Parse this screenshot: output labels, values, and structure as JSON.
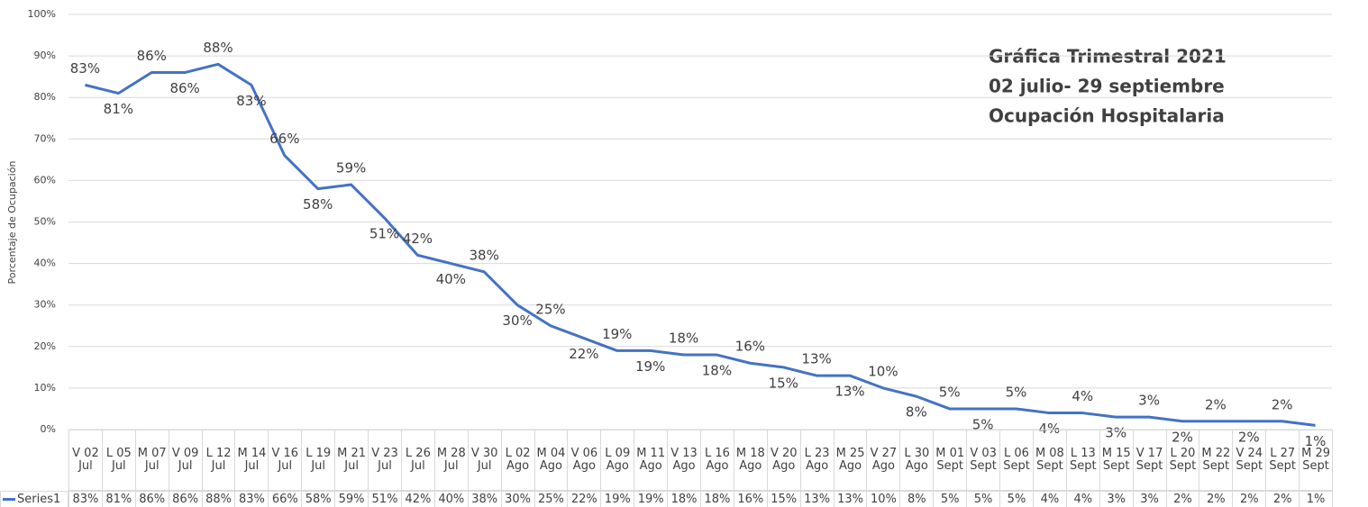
{
  "chart_data": {
    "type": "line",
    "title_lines": [
      "Gráfica Trimestral 2021",
      "02 julio- 29 septiembre",
      "Ocupación Hospitalaria"
    ],
    "y_label": "Porcentaje de Ocupación",
    "categories": [
      "V 02 Jul",
      "L 05 Jul",
      "M 07 Jul",
      "V 09 Jul",
      "L 12 Jul",
      "M 14 Jul",
      "V 16 Jul",
      "L 19 Jul",
      "M 21 Jul",
      "V 23 Jul",
      "L 26 Jul",
      "M 28 Jul",
      "V 30 Jul",
      "L 02 Ago",
      "M 04 Ago",
      "V 06 Ago",
      "L 09 Ago",
      "M 11 Ago",
      "V 13 Ago",
      "L 16 Ago",
      "M 18 Ago",
      "V 20 Ago",
      "L 23 Ago",
      "M 25 Ago",
      "V 27 Ago",
      "L 30 Ago",
      "M 01 Sept",
      "V 03 Sept",
      "L 06 Sept",
      "M 08 Sept",
      "L 13 Sept",
      "M 15 Sept",
      "V 17 Sept",
      "L 20 Sept",
      "M 22 Sept",
      "V 24 Sept",
      "L 27 Sept",
      "M 29 Sept"
    ],
    "series": [
      {
        "name": "Series1",
        "color": "#4472c4",
        "values": [
          83,
          81,
          86,
          86,
          88,
          83,
          66,
          58,
          59,
          51,
          42,
          40,
          38,
          30,
          25,
          22,
          19,
          19,
          18,
          18,
          16,
          15,
          13,
          13,
          10,
          8,
          5,
          5,
          5,
          4,
          4,
          3,
          3,
          2,
          2,
          2,
          2,
          1
        ],
        "value_labels": [
          "83%",
          "81%",
          "86%",
          "86%",
          "88%",
          "83%",
          "66%",
          "58%",
          "59%",
          "51%",
          "42%",
          "40%",
          "38%",
          "30%",
          "25%",
          "22%",
          "19%",
          "19%",
          "18%",
          "18%",
          "16%",
          "15%",
          "13%",
          "13%",
          "10%",
          "8%",
          "5%",
          "5%",
          "5%",
          "4%",
          "4%",
          "3%",
          "3%",
          "2%",
          "2%",
          "2%",
          "2%",
          "1%"
        ]
      }
    ],
    "ylim": [
      0,
      100
    ],
    "yticks": [
      {
        "value": 0,
        "label": "0%"
      },
      {
        "value": 10,
        "label": "10%"
      },
      {
        "value": 20,
        "label": "20%"
      },
      {
        "value": 30,
        "label": "30%"
      },
      {
        "value": 40,
        "label": "40%"
      },
      {
        "value": 50,
        "label": "50%"
      },
      {
        "value": 60,
        "label": "60%"
      },
      {
        "value": 70,
        "label": "70%"
      },
      {
        "value": 80,
        "label": "80%"
      },
      {
        "value": 90,
        "label": "90%"
      },
      {
        "value": 100,
        "label": "100%"
      }
    ],
    "grid": true
  }
}
